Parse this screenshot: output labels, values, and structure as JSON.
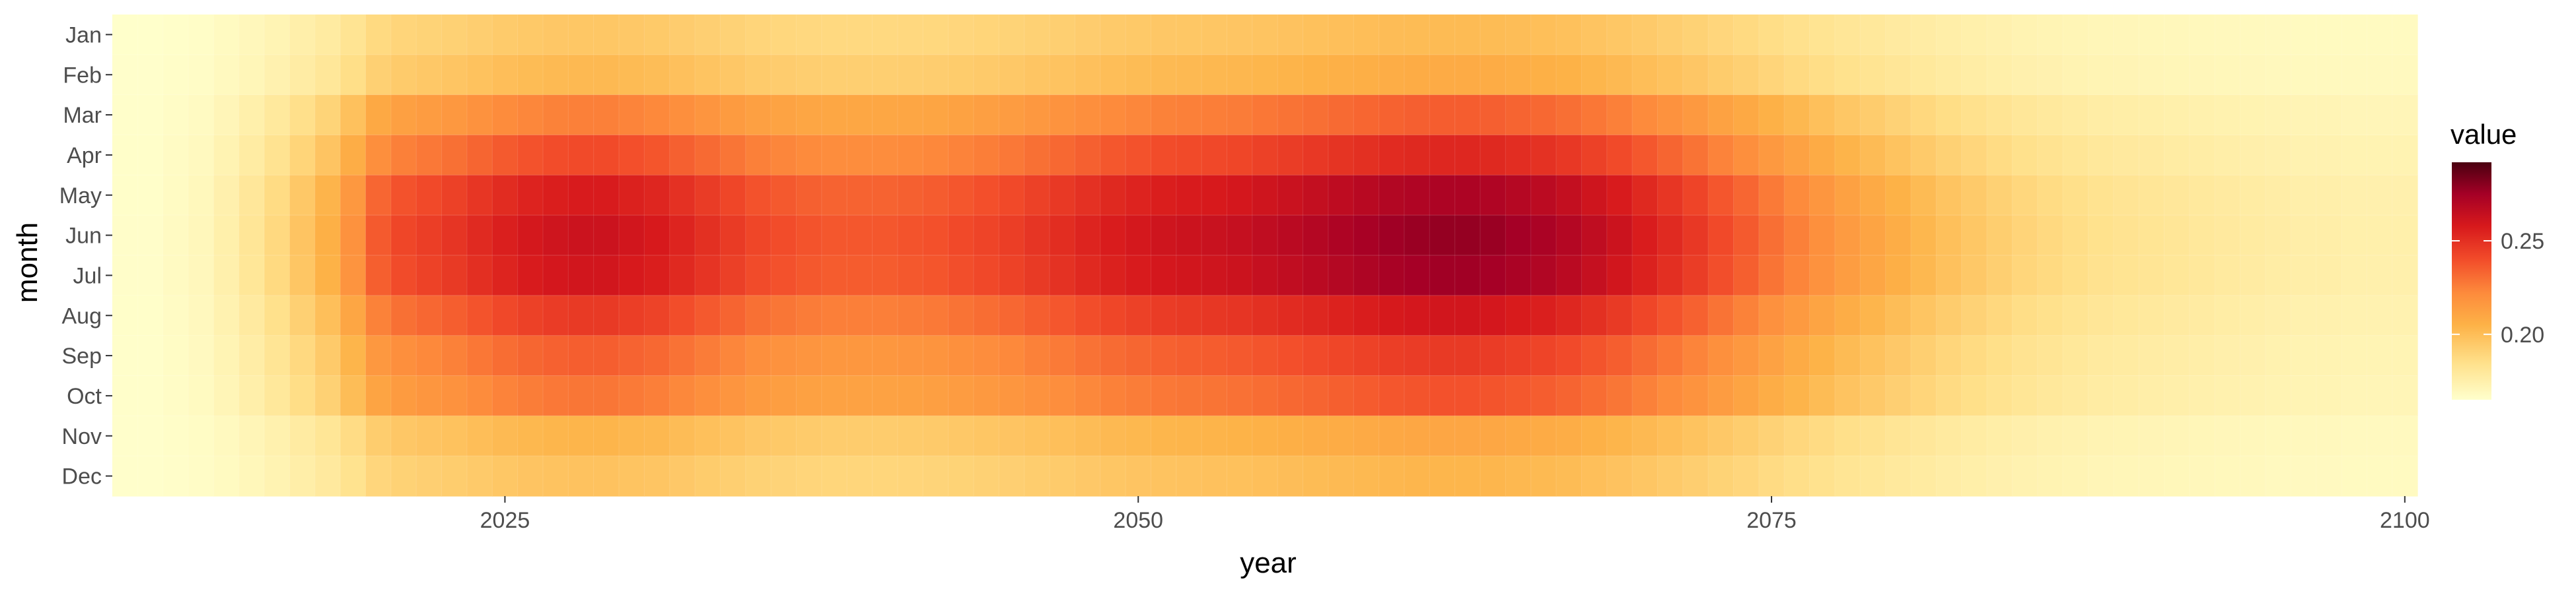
{
  "chart_data": {
    "type": "heatmap",
    "xlabel": "year",
    "ylabel": "month",
    "x_range": [
      2010,
      2100
    ],
    "x_ticks": [
      2025,
      2050,
      2075,
      2100
    ],
    "months": [
      "Jan",
      "Feb",
      "Mar",
      "Apr",
      "May",
      "Jun",
      "Jul",
      "Aug",
      "Sep",
      "Oct",
      "Nov",
      "Dec"
    ],
    "month_weights": [
      0.32,
      0.38,
      0.62,
      0.78,
      0.95,
      1.0,
      0.98,
      0.84,
      0.72,
      0.65,
      0.4,
      0.34
    ],
    "years": [
      2010,
      2011,
      2012,
      2013,
      2014,
      2015,
      2016,
      2017,
      2018,
      2019,
      2020,
      2021,
      2022,
      2023,
      2024,
      2025,
      2026,
      2027,
      2028,
      2029,
      2030,
      2031,
      2032,
      2033,
      2034,
      2035,
      2036,
      2037,
      2038,
      2039,
      2040,
      2041,
      2042,
      2043,
      2044,
      2045,
      2046,
      2047,
      2048,
      2049,
      2050,
      2051,
      2052,
      2053,
      2054,
      2055,
      2056,
      2057,
      2058,
      2059,
      2060,
      2061,
      2062,
      2063,
      2064,
      2065,
      2066,
      2067,
      2068,
      2069,
      2070,
      2071,
      2072,
      2073,
      2074,
      2075,
      2076,
      2077,
      2078,
      2079,
      2080,
      2081,
      2082,
      2083,
      2084,
      2085,
      2086,
      2087,
      2088,
      2089,
      2090,
      2091,
      2092,
      2093,
      2094,
      2095,
      2096,
      2097,
      2098,
      2099,
      2100
    ],
    "year_profile": [
      0.166,
      0.166,
      0.168,
      0.17,
      0.175,
      0.181,
      0.188,
      0.197,
      0.206,
      0.219,
      0.236,
      0.242,
      0.245,
      0.248,
      0.252,
      0.256,
      0.259,
      0.261,
      0.262,
      0.262,
      0.26,
      0.258,
      0.254,
      0.25,
      0.246,
      0.242,
      0.24,
      0.238,
      0.237,
      0.237,
      0.237,
      0.238,
      0.239,
      0.241,
      0.243,
      0.245,
      0.248,
      0.251,
      0.254,
      0.257,
      0.259,
      0.261,
      0.262,
      0.263,
      0.264,
      0.266,
      0.268,
      0.27,
      0.272,
      0.274,
      0.276,
      0.277,
      0.278,
      0.278,
      0.277,
      0.275,
      0.273,
      0.27,
      0.266,
      0.262,
      0.257,
      0.252,
      0.247,
      0.241,
      0.236,
      0.23,
      0.225,
      0.22,
      0.215,
      0.211,
      0.207,
      0.203,
      0.199,
      0.196,
      0.193,
      0.19,
      0.188,
      0.186,
      0.184,
      0.183,
      0.182,
      0.181,
      0.18,
      0.179,
      0.178,
      0.177,
      0.176,
      0.176,
      0.175,
      0.175,
      0.175
    ],
    "value_range": [
      0.165,
      0.292
    ],
    "color_stops": [
      {
        "value": 0.165,
        "color": "#ffffcc"
      },
      {
        "value": 0.185,
        "color": "#ffe08a"
      },
      {
        "value": 0.205,
        "color": "#fdb247"
      },
      {
        "value": 0.222,
        "color": "#fd8b3c"
      },
      {
        "value": 0.24,
        "color": "#f24c2a"
      },
      {
        "value": 0.258,
        "color": "#d7191c"
      },
      {
        "value": 0.275,
        "color": "#a50026"
      },
      {
        "value": 0.292,
        "color": "#4a0010"
      }
    ],
    "legend": {
      "title": "value",
      "ticks": [
        0.2,
        0.25
      ],
      "tick_labels": [
        "0.20",
        "0.25"
      ],
      "placement": "right"
    },
    "grid": true
  }
}
